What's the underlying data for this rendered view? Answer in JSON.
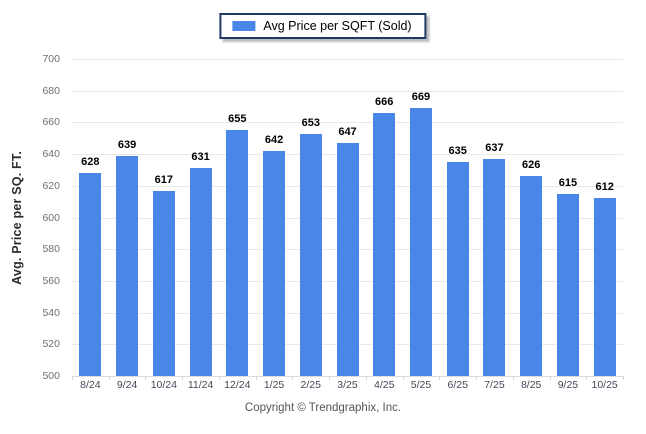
{
  "legend": {
    "label": "Avg Price per SQFT (Sold)"
  },
  "footer": {
    "copyright": "Copyright © Trendgraphix, Inc."
  },
  "chart_data": {
    "type": "bar",
    "title": "",
    "series_name": "Avg Price per SQFT (Sold)",
    "categories": [
      "8/24",
      "9/24",
      "10/24",
      "11/24",
      "12/24",
      "1/25",
      "2/25",
      "3/25",
      "4/25",
      "5/25",
      "6/25",
      "7/25",
      "8/25",
      "9/25",
      "10/25"
    ],
    "values": [
      628,
      639,
      617,
      631,
      655,
      642,
      653,
      647,
      666,
      669,
      635,
      637,
      626,
      615,
      612
    ],
    "ylabel": "Avg. Price per SQ. FT.",
    "xlabel": "",
    "ylim": [
      500,
      700
    ],
    "ytick_step": 20,
    "grid": "horizontal",
    "legend_position": "top-center"
  },
  "colors": {
    "bar": "#4A86E8",
    "legend_border": "#1F3864",
    "gridline": "#E9E9E9",
    "y_tick_text": "#6E6E6E",
    "x_tick_text": "#454756",
    "value_text": "#000000",
    "footer_text": "#55565A"
  }
}
